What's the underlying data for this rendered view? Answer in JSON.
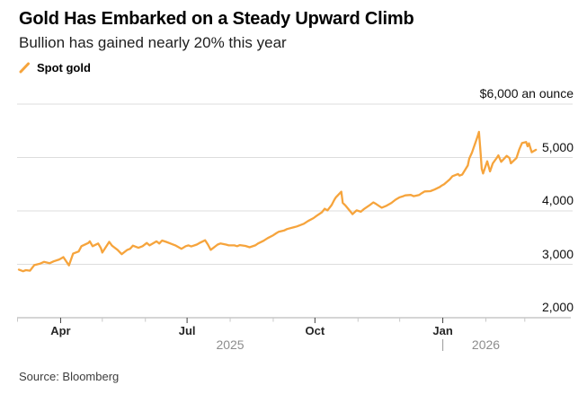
{
  "header": {
    "title": "Gold Has Embarked on a Steady Upward Climb",
    "subtitle": "Bullion has gained nearly 20% this year"
  },
  "legend": {
    "label": "Spot gold",
    "marker": "slash-icon"
  },
  "source": "Source: Bloomberg",
  "colors": {
    "line": "#F6A43C",
    "grid": "#DDDDDD",
    "axis": "#ABABAB",
    "tick_major": "#3F3F3F",
    "tick_minor": "#C8C8C8"
  },
  "chart_data": {
    "type": "line",
    "title": "Gold Has Embarked on a Steady Upward Climb",
    "subtitle": "Bullion has gained nearly 20% this year",
    "legend": [
      "Spot gold"
    ],
    "legend_position": "top-left",
    "grid": "horizontal-only",
    "y_axis": {
      "min": 2000,
      "max": 6000,
      "unit": "$ an ounce",
      "ticks": [
        {
          "value": 6000,
          "label": "$6,000 an ounce"
        },
        {
          "value": 5000,
          "label": "5,000"
        },
        {
          "value": 4000,
          "label": "4,000"
        },
        {
          "value": 3000,
          "label": "3,000"
        },
        {
          "value": 2000,
          "label": "2,000"
        }
      ]
    },
    "x_axis": {
      "start": "2025-03-01",
      "end": "2026-03-15",
      "ticks": [
        {
          "date": "2025-03-01",
          "label": ""
        },
        {
          "date": "2025-04-01",
          "label": "Apr"
        },
        {
          "date": "2025-05-01",
          "label": ""
        },
        {
          "date": "2025-06-01",
          "label": ""
        },
        {
          "date": "2025-07-01",
          "label": "Jul"
        },
        {
          "date": "2025-08-01",
          "label": ""
        },
        {
          "date": "2025-09-01",
          "label": ""
        },
        {
          "date": "2025-10-01",
          "label": "Oct"
        },
        {
          "date": "2025-11-01",
          "label": ""
        },
        {
          "date": "2025-12-01",
          "label": ""
        },
        {
          "date": "2026-01-01",
          "label": "Jan"
        },
        {
          "date": "2026-02-01",
          "label": ""
        },
        {
          "date": "2026-03-01",
          "label": ""
        }
      ],
      "year_labels": [
        {
          "label": "2025",
          "center_date": "2025-08-01"
        },
        {
          "label": "2026",
          "center_date": "2026-02-01"
        }
      ],
      "year_separator": "|",
      "year_separator_date": "2026-01-01"
    },
    "series": [
      {
        "name": "Spot gold",
        "color": "#F6A43C",
        "points": [
          [
            "2025-03-02",
            2900
          ],
          [
            "2025-03-05",
            2870
          ],
          [
            "2025-03-07",
            2890
          ],
          [
            "2025-03-10",
            2880
          ],
          [
            "2025-03-13",
            2985
          ],
          [
            "2025-03-17",
            3010
          ],
          [
            "2025-03-20",
            3045
          ],
          [
            "2025-03-24",
            3020
          ],
          [
            "2025-03-27",
            3055
          ],
          [
            "2025-03-31",
            3090
          ],
          [
            "2025-04-02",
            3120
          ],
          [
            "2025-04-03",
            3135
          ],
          [
            "2025-04-07",
            2980
          ],
          [
            "2025-04-10",
            3200
          ],
          [
            "2025-04-14",
            3240
          ],
          [
            "2025-04-16",
            3340
          ],
          [
            "2025-04-21",
            3400
          ],
          [
            "2025-04-22",
            3430
          ],
          [
            "2025-04-24",
            3340
          ],
          [
            "2025-04-28",
            3390
          ],
          [
            "2025-04-30",
            3300
          ],
          [
            "2025-05-01",
            3220
          ],
          [
            "2025-05-06",
            3420
          ],
          [
            "2025-05-08",
            3350
          ],
          [
            "2025-05-12",
            3270
          ],
          [
            "2025-05-15",
            3190
          ],
          [
            "2025-05-19",
            3270
          ],
          [
            "2025-05-21",
            3290
          ],
          [
            "2025-05-23",
            3350
          ],
          [
            "2025-05-27",
            3310
          ],
          [
            "2025-05-30",
            3340
          ],
          [
            "2025-06-02",
            3400
          ],
          [
            "2025-06-04",
            3355
          ],
          [
            "2025-06-09",
            3430
          ],
          [
            "2025-06-11",
            3390
          ],
          [
            "2025-06-13",
            3445
          ],
          [
            "2025-06-16",
            3420
          ],
          [
            "2025-06-19",
            3390
          ],
          [
            "2025-06-23",
            3350
          ],
          [
            "2025-06-25",
            3320
          ],
          [
            "2025-06-27",
            3290
          ],
          [
            "2025-06-30",
            3340
          ],
          [
            "2025-07-02",
            3355
          ],
          [
            "2025-07-04",
            3335
          ],
          [
            "2025-07-08",
            3370
          ],
          [
            "2025-07-10",
            3400
          ],
          [
            "2025-07-14",
            3450
          ],
          [
            "2025-07-16",
            3370
          ],
          [
            "2025-07-18",
            3270
          ],
          [
            "2025-07-23",
            3370
          ],
          [
            "2025-07-25",
            3390
          ],
          [
            "2025-07-29",
            3370
          ],
          [
            "2025-07-31",
            3355
          ],
          [
            "2025-08-04",
            3355
          ],
          [
            "2025-08-06",
            3340
          ],
          [
            "2025-08-08",
            3360
          ],
          [
            "2025-08-12",
            3345
          ],
          [
            "2025-08-15",
            3320
          ],
          [
            "2025-08-19",
            3355
          ],
          [
            "2025-08-21",
            3390
          ],
          [
            "2025-08-25",
            3440
          ],
          [
            "2025-08-28",
            3490
          ],
          [
            "2025-09-01",
            3545
          ],
          [
            "2025-09-03",
            3580
          ],
          [
            "2025-09-05",
            3610
          ],
          [
            "2025-09-09",
            3635
          ],
          [
            "2025-09-11",
            3660
          ],
          [
            "2025-09-16",
            3695
          ],
          [
            "2025-09-18",
            3710
          ],
          [
            "2025-09-23",
            3760
          ],
          [
            "2025-09-26",
            3810
          ],
          [
            "2025-09-30",
            3865
          ],
          [
            "2025-10-02",
            3905
          ],
          [
            "2025-10-06",
            3975
          ],
          [
            "2025-10-08",
            4040
          ],
          [
            "2025-10-10",
            4010
          ],
          [
            "2025-10-13",
            4110
          ],
          [
            "2025-10-15",
            4210
          ],
          [
            "2025-10-16",
            4250
          ],
          [
            "2025-10-20",
            4360
          ],
          [
            "2025-10-21",
            4150
          ],
          [
            "2025-10-23",
            4100
          ],
          [
            "2025-10-27",
            3975
          ],
          [
            "2025-10-28",
            3940
          ],
          [
            "2025-10-31",
            4010
          ],
          [
            "2025-11-03",
            3985
          ],
          [
            "2025-11-05",
            4030
          ],
          [
            "2025-11-10",
            4120
          ],
          [
            "2025-11-12",
            4160
          ],
          [
            "2025-11-14",
            4130
          ],
          [
            "2025-11-18",
            4060
          ],
          [
            "2025-11-21",
            4090
          ],
          [
            "2025-11-25",
            4150
          ],
          [
            "2025-11-28",
            4210
          ],
          [
            "2025-12-01",
            4255
          ],
          [
            "2025-12-03",
            4270
          ],
          [
            "2025-12-05",
            4290
          ],
          [
            "2025-12-09",
            4300
          ],
          [
            "2025-12-11",
            4275
          ],
          [
            "2025-12-15",
            4300
          ],
          [
            "2025-12-17",
            4335
          ],
          [
            "2025-12-19",
            4365
          ],
          [
            "2025-12-23",
            4370
          ],
          [
            "2025-12-26",
            4400
          ],
          [
            "2025-12-30",
            4450
          ],
          [
            "2025-12-31",
            4470
          ],
          [
            "2026-01-02",
            4500
          ],
          [
            "2026-01-06",
            4590
          ],
          [
            "2026-01-08",
            4650
          ],
          [
            "2026-01-12",
            4690
          ],
          [
            "2026-01-13",
            4660
          ],
          [
            "2026-01-15",
            4680
          ],
          [
            "2026-01-19",
            4850
          ],
          [
            "2026-01-20",
            4980
          ],
          [
            "2026-01-22",
            5090
          ],
          [
            "2026-01-26",
            5390
          ],
          [
            "2026-01-27",
            5480
          ],
          [
            "2026-01-28",
            5160
          ],
          [
            "2026-01-29",
            4790
          ],
          [
            "2026-01-30",
            4700
          ],
          [
            "2026-02-02",
            4930
          ],
          [
            "2026-02-04",
            4740
          ],
          [
            "2026-02-06",
            4890
          ],
          [
            "2026-02-09",
            5000
          ],
          [
            "2026-02-10",
            5040
          ],
          [
            "2026-02-12",
            4920
          ],
          [
            "2026-02-16",
            5030
          ],
          [
            "2026-02-18",
            4990
          ],
          [
            "2026-02-19",
            4890
          ],
          [
            "2026-02-23",
            4990
          ],
          [
            "2026-02-25",
            5150
          ],
          [
            "2026-02-27",
            5270
          ],
          [
            "2026-03-02",
            5290
          ],
          [
            "2026-03-03",
            5210
          ],
          [
            "2026-03-04",
            5265
          ],
          [
            "2026-03-06",
            5100
          ],
          [
            "2026-03-09",
            5145
          ]
        ]
      }
    ]
  }
}
